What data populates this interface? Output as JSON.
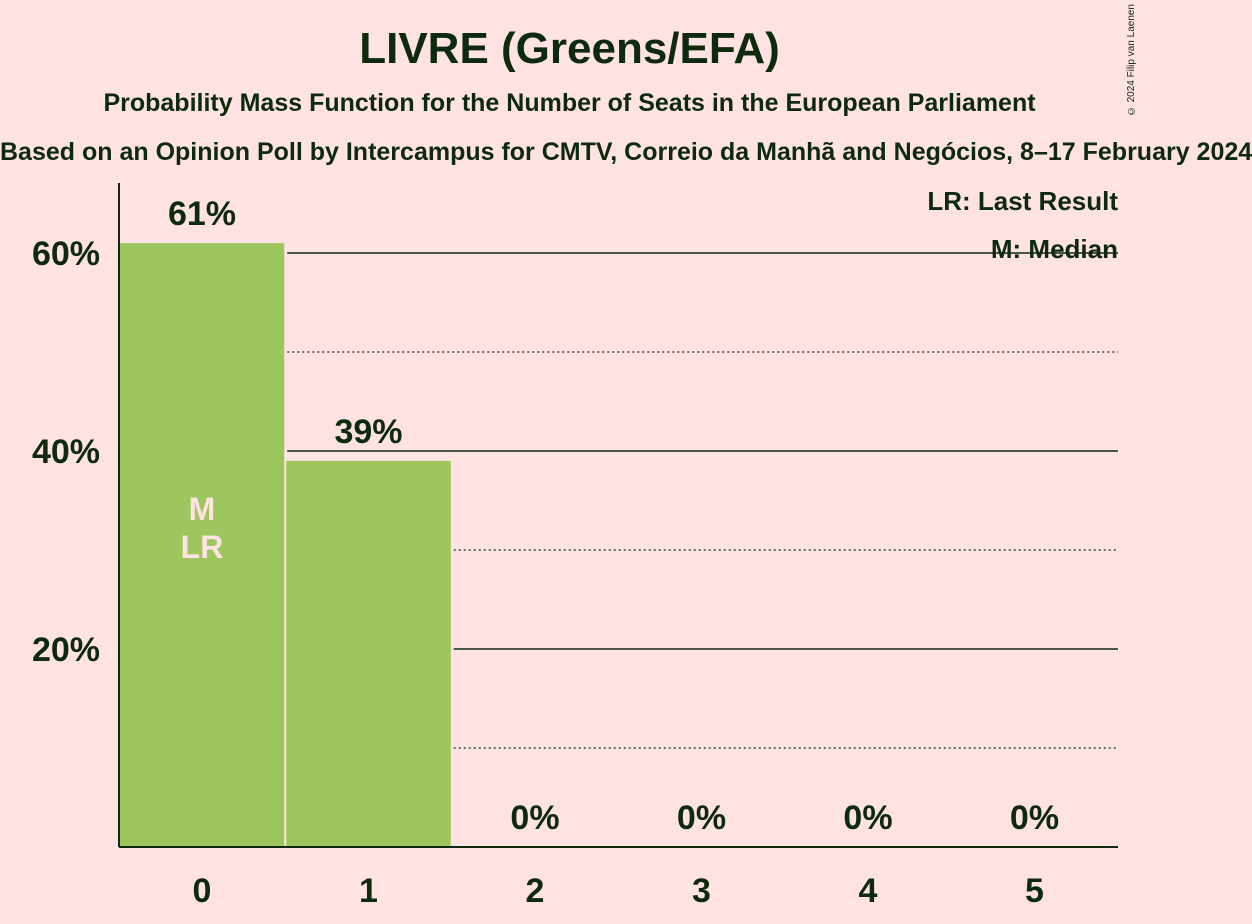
{
  "header": {
    "title": "LIVRE (Greens/EFA)",
    "subtitle": "Probability Mass Function for the Number of Seats in the European Parliament",
    "subtitle2": "Based on an Opinion Poll by Intercampus for CMTV, Correio da Manhã and Negócios, 8–17 February 2024",
    "copyright": "© 2024 Filip van Laenen"
  },
  "colors": {
    "background": "#ffe2e2",
    "bar": "#9ec65e",
    "text": "#0e2a0e",
    "bar_label": "#ffe2e2"
  },
  "chart_data": {
    "type": "bar",
    "categories": [
      "0",
      "1",
      "2",
      "3",
      "4",
      "5"
    ],
    "values": [
      61,
      39,
      0,
      0,
      0,
      0
    ],
    "value_labels": [
      "61%",
      "39%",
      "0%",
      "0%",
      "0%",
      "0%"
    ],
    "ylim": [
      0,
      67
    ],
    "yticks": [
      20,
      40,
      60
    ],
    "ytick_labels": [
      "20%",
      "40%",
      "60%"
    ],
    "minor_gridlines": [
      10,
      30,
      50
    ],
    "bar_annotations": [
      {
        "category": "0",
        "lines": [
          "M",
          "LR"
        ]
      }
    ],
    "legend": {
      "position": "top-right",
      "entries": [
        "LR: Last Result",
        "M: Median"
      ]
    }
  }
}
